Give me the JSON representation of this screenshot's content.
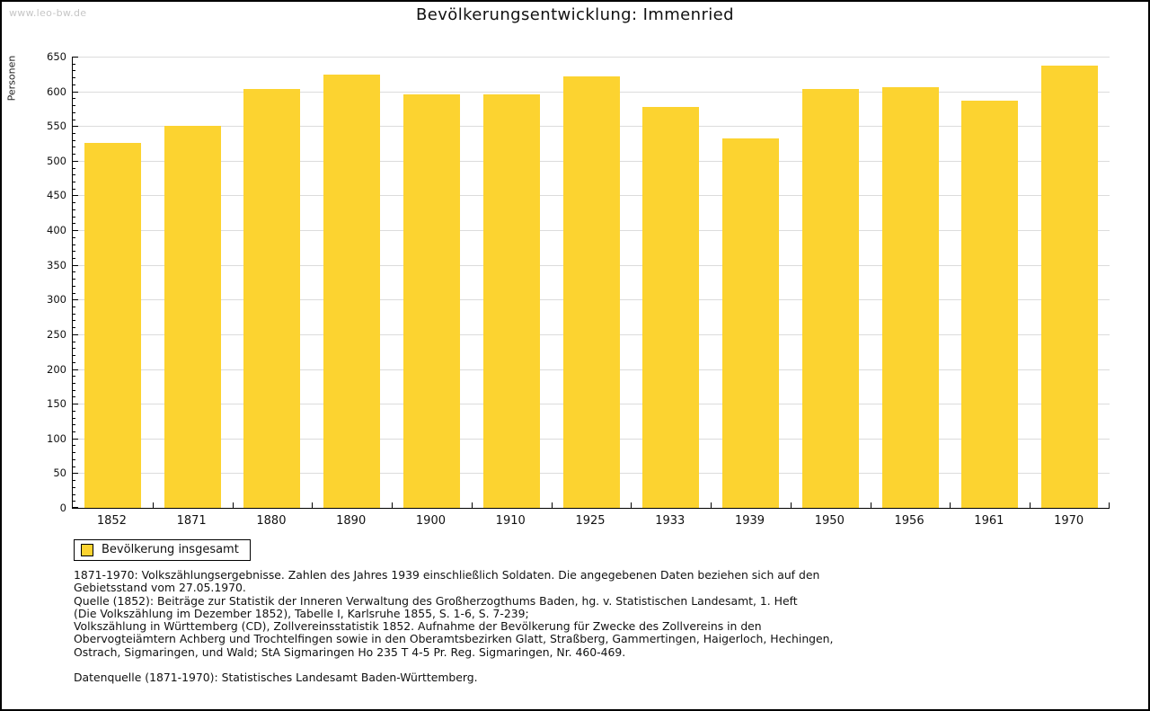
{
  "page": {
    "watermark": "www.leo-bw.de",
    "title": "Bevölkerungsentwicklung: Immenried"
  },
  "colors": {
    "bar": "#fcd330",
    "grid": "#dcdcdc",
    "axis": "#000000",
    "watermark": "#c6c6c6"
  },
  "chart_data": {
    "type": "bar",
    "title": "Bevölkerungsentwicklung: Immenried",
    "ylabel": "Personen",
    "xlabel": "",
    "categories": [
      "1852",
      "1871",
      "1880",
      "1890",
      "1900",
      "1910",
      "1925",
      "1933",
      "1939",
      "1950",
      "1956",
      "1961",
      "1970"
    ],
    "series": [
      {
        "name": "Bevölkerung insgesamt",
        "values": [
          526,
          550,
          604,
          624,
          596,
          596,
          622,
          577,
          532,
          603,
          606,
          587,
          637
        ]
      }
    ],
    "ylim": [
      0,
      650
    ],
    "ytick_step": 50,
    "minor_tick_step": 10,
    "grid": true,
    "legend_position": "bottom-left"
  },
  "legend": {
    "label": "Bevölkerung insgesamt"
  },
  "footnotes": {
    "block1": "1871-1970: Volkszählungsergebnisse. Zahlen des Jahres 1939 einschließlich Soldaten. Die angegebenen Daten beziehen sich auf den\nGebietsstand vom 27.05.1970.",
    "block2": "Quelle (1852): Beiträge zur Statistik der Inneren Verwaltung des Großherzogthums Baden, hg. v. Statistischen Landesamt, 1. Heft\n(Die Volkszählung im Dezember 1852), Tabelle I, Karlsruhe 1855, S. 1-6, S. 7-239;\nVolkszählung in Württemberg (CD), Zollvereinsstatistik 1852. Aufnahme der Bevölkerung für Zwecke des Zollvereins in den\nObervogteiämtern Achberg und Trochtelfingen sowie in den Oberamtsbezirken Glatt, Straßberg, Gammertingen, Haigerloch, Hechingen,\nOstrach, Sigmaringen, und Wald; StA Sigmaringen Ho 235 T 4-5 Pr. Reg. Sigmaringen, Nr. 460-469.",
    "block3": "Datenquelle (1871-1970): Statistisches Landesamt Baden-Württemberg."
  }
}
